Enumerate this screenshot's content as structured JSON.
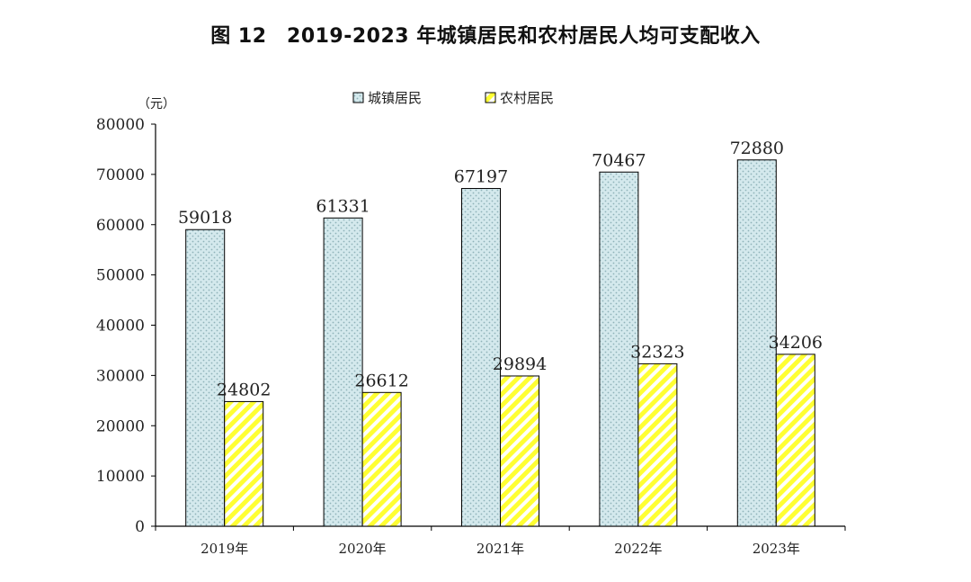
{
  "page": {
    "title": "图 12　2019-2023 年城镇居民和农村居民人均可支配收入"
  },
  "chart_data": {
    "type": "bar",
    "title": "图 12　2019-2023 年城镇居民和农村居民人均可支配收入",
    "unit": "（元）",
    "categories": [
      "2019年",
      "2020年",
      "2021年",
      "2022年",
      "2023年"
    ],
    "series": [
      {
        "name": "城镇居民",
        "values": [
          59018,
          61331,
          67197,
          70467,
          72880
        ],
        "color": "#cfe6ea",
        "pattern": "dotted"
      },
      {
        "name": "农村居民",
        "values": [
          24802,
          26612,
          29894,
          32323,
          34206
        ],
        "color": "#ffff4d",
        "pattern": "diagonal-stripes"
      }
    ],
    "yticks": [
      0,
      10000,
      20000,
      30000,
      40000,
      50000,
      60000,
      70000,
      80000
    ],
    "ylim": [
      0,
      80000
    ],
    "grid": false,
    "legend_position": "top"
  }
}
